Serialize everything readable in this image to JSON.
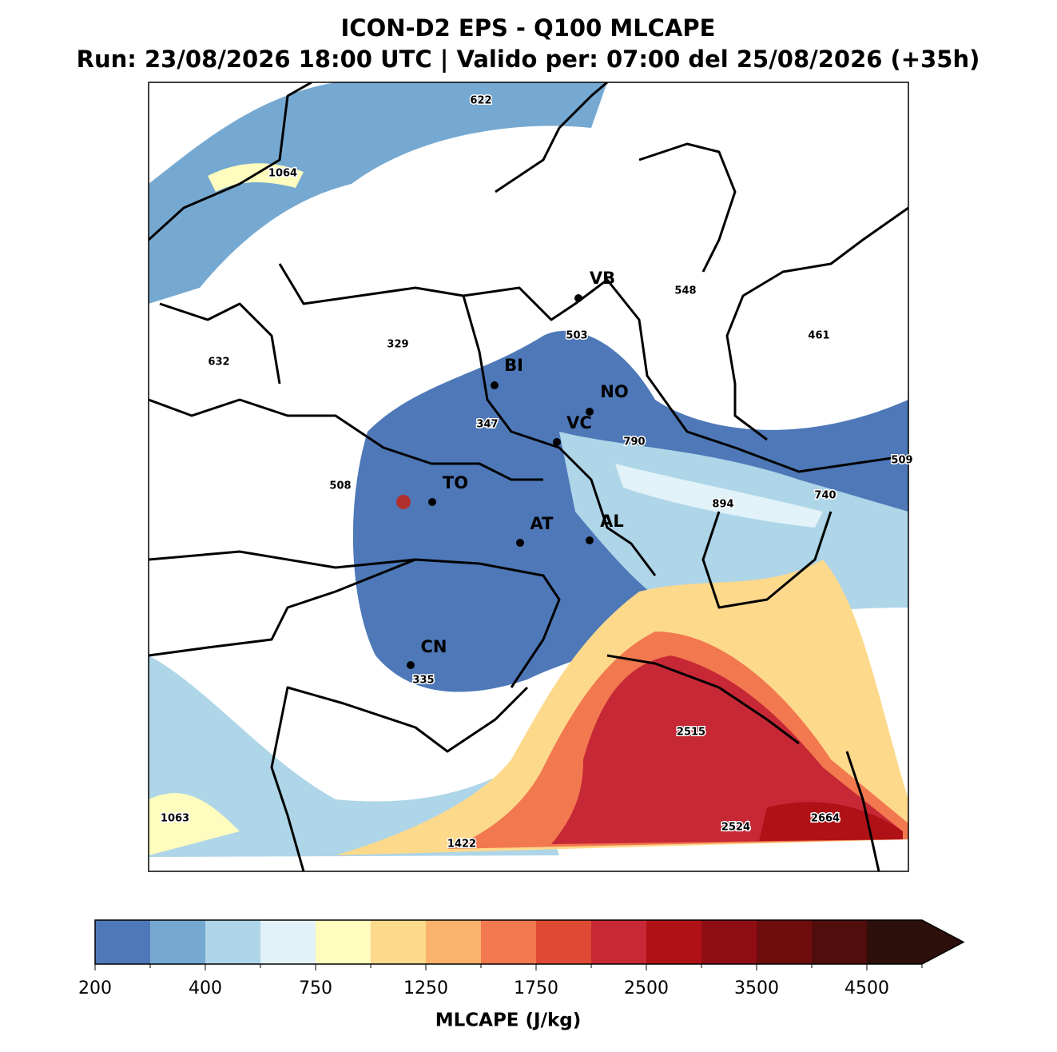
{
  "title": "ICON-D2 EPS - Q100 MLCAPE",
  "subtitle": "Run: 23/08/2026 18:00 UTC | Valido per: 07:00 del 25/08/2026 (+35h)",
  "cities": [
    "VB",
    "BI",
    "NO",
    "VC",
    "TO",
    "AT",
    "AL",
    "CN"
  ],
  "value_labels": [
    622,
    1064,
    632,
    329,
    548,
    503,
    461,
    347,
    790,
    509,
    508,
    894,
    740,
    335,
    2515,
    2524,
    2664,
    1063,
    1422
  ],
  "colorbar": {
    "label": "MLCAPE (J/kg)",
    "ticks": [
      200,
      400,
      750,
      1250,
      1750,
      2500,
      3500,
      4500
    ],
    "colors": [
      "#4e78b8",
      "#76a9d1",
      "#aed5e8",
      "#e1f2f8",
      "#fefcbe",
      "#fdd98b",
      "#fbb26c",
      "#f2784f",
      "#de4a33",
      "#c72835",
      "#b01116",
      "#8e0d12",
      "#6e0c0e",
      "#4f0d0c",
      "#2d0f0c"
    ]
  }
}
